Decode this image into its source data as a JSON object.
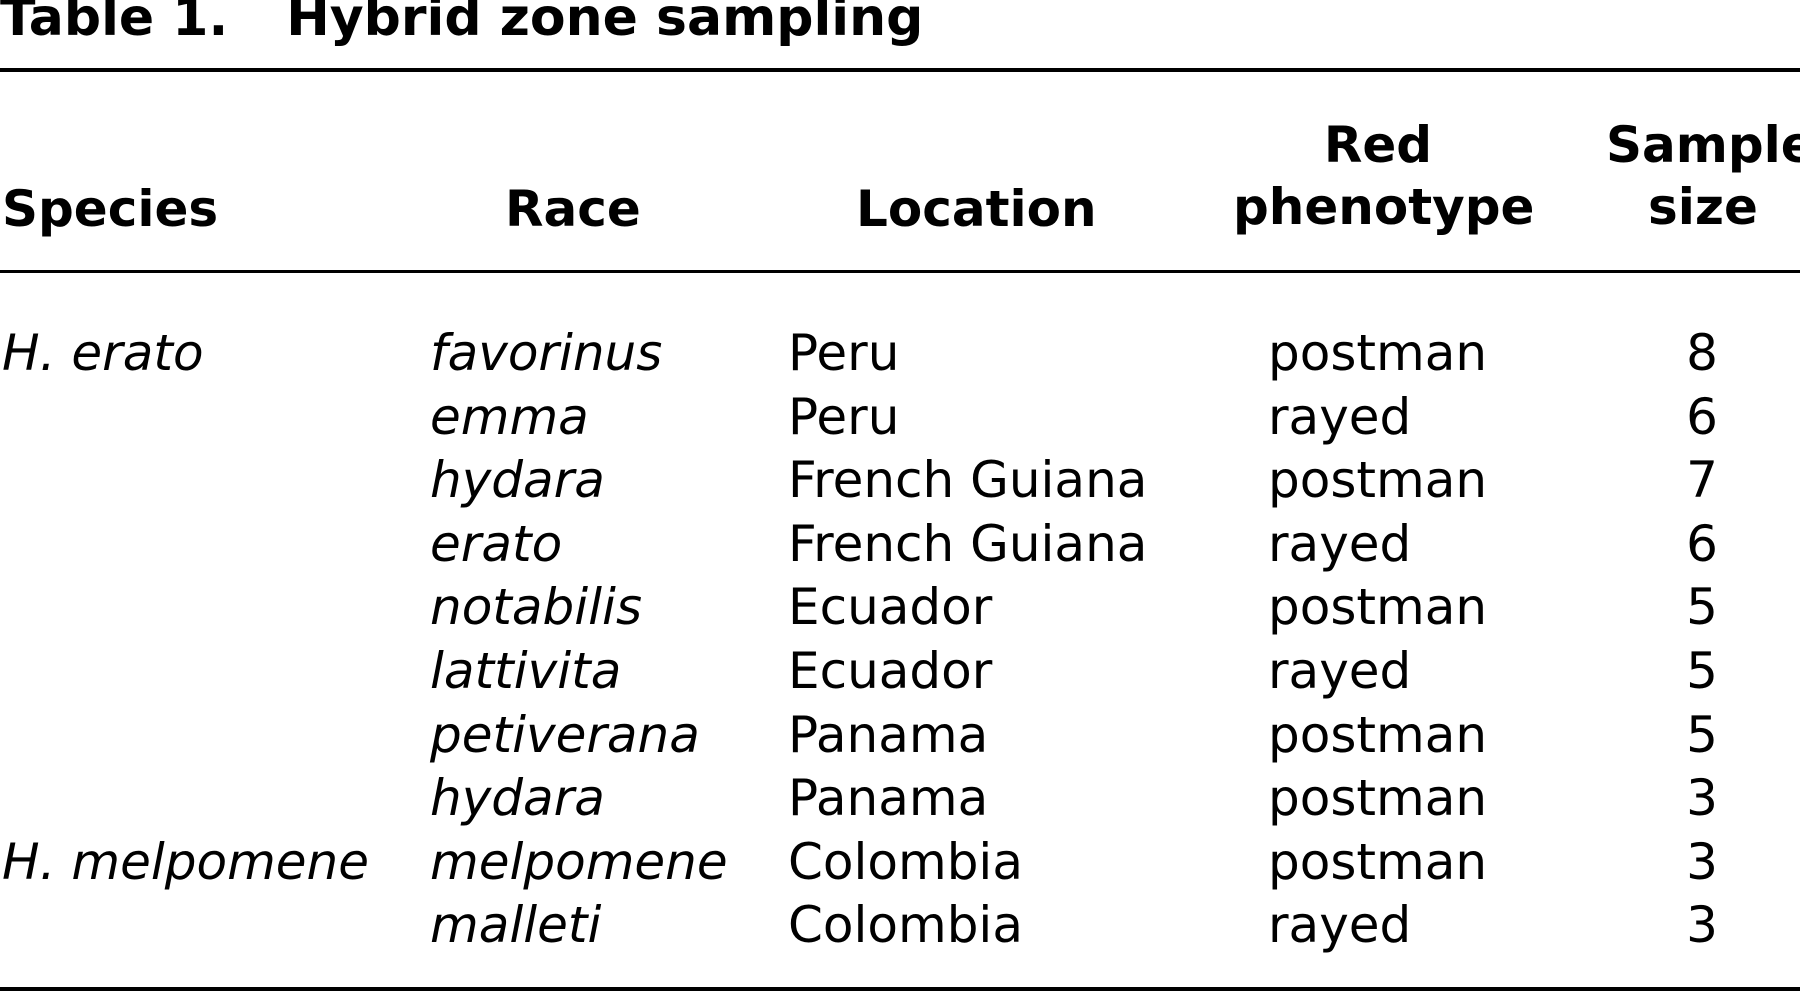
{
  "table": {
    "label": "Table 1.",
    "caption": "Hybrid zone sampling",
    "columns": {
      "species": "Species",
      "race": "Race",
      "location": "Location",
      "red_phenotype_line1": "Red",
      "red_phenotype_line2": "phenotype",
      "sample_size_line1": "Sample",
      "sample_size_line2": "size"
    },
    "rows": [
      {
        "species": "H. erato",
        "race": "favorinus",
        "location": "Peru",
        "red_phenotype": "postman",
        "sample_size": "8"
      },
      {
        "species": "",
        "race": "emma",
        "location": "Peru",
        "red_phenotype": "rayed",
        "sample_size": "6"
      },
      {
        "species": "",
        "race": "hydara",
        "location": "French Guiana",
        "red_phenotype": "postman",
        "sample_size": "7"
      },
      {
        "species": "",
        "race": "erato",
        "location": "French Guiana",
        "red_phenotype": "rayed",
        "sample_size": "6"
      },
      {
        "species": "",
        "race": "notabilis",
        "location": "Ecuador",
        "red_phenotype": "postman",
        "sample_size": "5"
      },
      {
        "species": "",
        "race": "lattivita",
        "location": "Ecuador",
        "red_phenotype": "rayed",
        "sample_size": "5"
      },
      {
        "species": "",
        "race": "petiverana",
        "location": "Panama",
        "red_phenotype": "postman",
        "sample_size": "5"
      },
      {
        "species": "",
        "race": "hydara",
        "location": "Panama",
        "red_phenotype": "postman",
        "sample_size": "3"
      },
      {
        "species": "H. melpomene",
        "race": "melpomene",
        "location": "Colombia",
        "red_phenotype": "postman",
        "sample_size": "3"
      },
      {
        "species": "",
        "race": "malleti",
        "location": "Colombia",
        "red_phenotype": "rayed",
        "sample_size": "3"
      }
    ]
  }
}
